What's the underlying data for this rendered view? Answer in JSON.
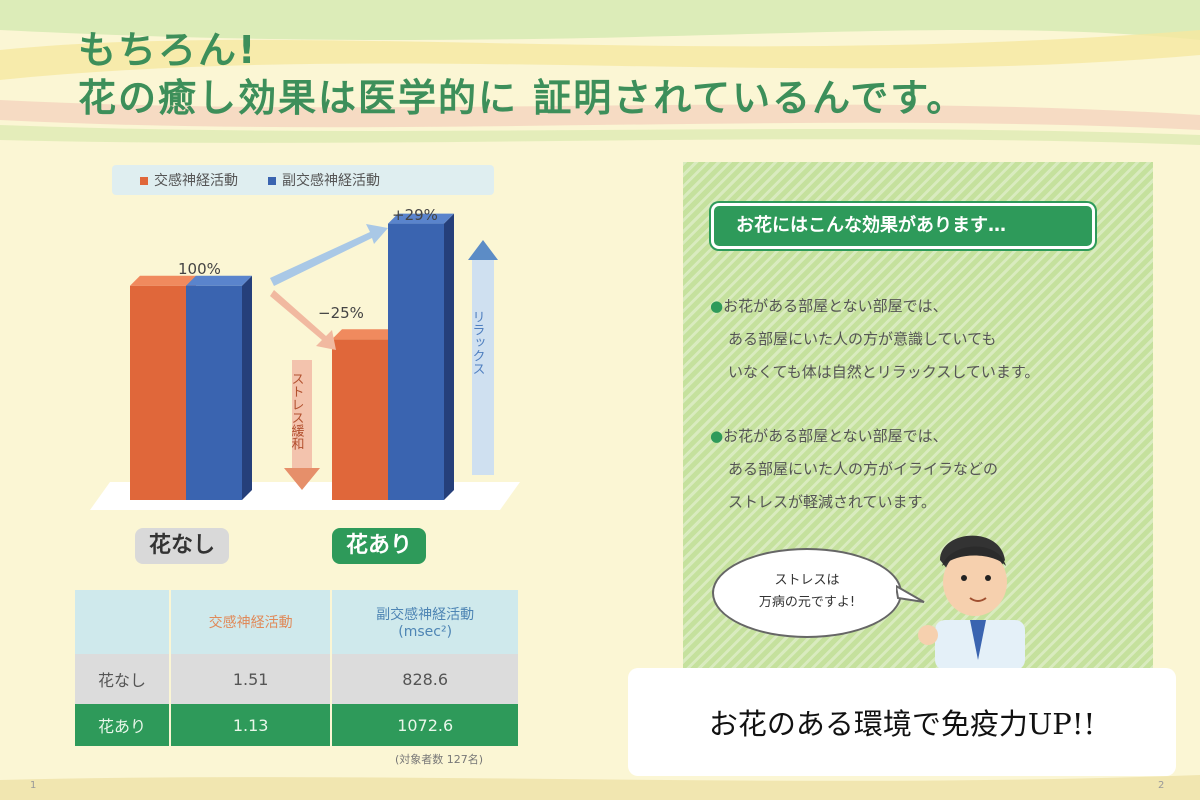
{
  "title": {
    "line1": "もちろん!",
    "line2": "花の癒し効果は医学的に 証明されているんです。"
  },
  "colors": {
    "sympathetic": "#e0673a",
    "parasympathetic": "#3a64b0",
    "green": "#2e9a5a"
  },
  "chart_data": {
    "type": "bar",
    "categories": [
      "花なし",
      "花あり"
    ],
    "series": [
      {
        "name": "交感神経活動",
        "values": [
          100,
          75
        ]
      },
      {
        "name": "副交感神経活動",
        "values": [
          100,
          129
        ]
      }
    ],
    "annotations": [
      "100%",
      "−25%",
      "+29%",
      "ストレス緩和",
      "リラックス"
    ],
    "ylim": [
      0,
      140
    ],
    "legend": "top"
  },
  "table": {
    "headers": [
      "",
      "交感神経活動",
      "副交感神経活動\n(msec²)"
    ],
    "rows": [
      [
        "花なし",
        "1.51",
        "828.6"
      ],
      [
        "花あり",
        "1.13",
        "1072.6"
      ]
    ],
    "note": "(対象者数 127名)"
  },
  "panel": {
    "heading": "お花にはこんな効果があります…",
    "bullets": [
      [
        "お花がある部屋とない部屋では、",
        "ある部屋にいた人の方が意識していても",
        "いなくても体は自然とリラックスしています。"
      ],
      [
        "お花がある部屋とない部屋では、",
        "ある部屋にいた人の方がイライラなどの",
        "ストレスが軽減されています。"
      ]
    ],
    "bubble": [
      "ストレスは",
      "万病の元ですよ!"
    ]
  },
  "caption": "お花のある環境で免疫力UP!!",
  "page_numbers": [
    "1",
    "2"
  ]
}
